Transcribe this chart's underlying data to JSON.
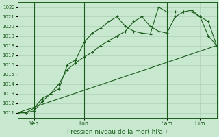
{
  "xlabel": "Pression niveau de la mer( hPa )",
  "ylim": [
    1010.5,
    1022.5
  ],
  "xlim": [
    0,
    24
  ],
  "yticks": [
    1011,
    1012,
    1013,
    1014,
    1015,
    1016,
    1017,
    1018,
    1019,
    1020,
    1021,
    1022
  ],
  "bg_color": "#c8e8d0",
  "grid_color": "#a8c8b0",
  "line_color": "#1a5c1a",
  "vline_x": [
    2,
    8,
    18
  ],
  "series1": {
    "x": [
      0,
      1,
      2,
      3,
      4,
      5,
      6,
      7,
      8,
      9,
      10,
      11,
      12,
      13,
      14,
      15,
      16,
      17,
      18,
      19,
      20,
      21,
      22,
      23,
      24
    ],
    "y": [
      1011,
      1011,
      1011.2,
      1012.2,
      1013,
      1014,
      1015.5,
      1016.2,
      1016.8,
      1017.3,
      1018,
      1018.5,
      1019,
      1019.5,
      1020.5,
      1021,
      1020,
      1019.5,
      1019.3,
      1021,
      1021.5,
      1021.5,
      1021,
      1020.5,
      1018
    ]
  },
  "series2": {
    "x": [
      0,
      1,
      2,
      3,
      4,
      5,
      6,
      7,
      8,
      9,
      10,
      11,
      12,
      13,
      14,
      15,
      16,
      17,
      18,
      19,
      20,
      21,
      22,
      23,
      24
    ],
    "y": [
      1011,
      1011,
      1011.5,
      1012.5,
      1013,
      1013.5,
      1016,
      1016.5,
      1018.3,
      1019.3,
      1019.8,
      1020.5,
      1021,
      1020,
      1019.5,
      1019.3,
      1019.2,
      1022,
      1021.5,
      1021.5,
      1021.5,
      1021.7,
      1021,
      1019,
      1018
    ]
  },
  "series3": {
    "x": [
      0,
      24
    ],
    "y": [
      1011,
      1018
    ]
  },
  "xtick_positions": [
    2,
    8,
    18,
    22
  ],
  "xtick_labels": [
    "Ven",
    "Lun",
    "Sam",
    "Dim"
  ]
}
